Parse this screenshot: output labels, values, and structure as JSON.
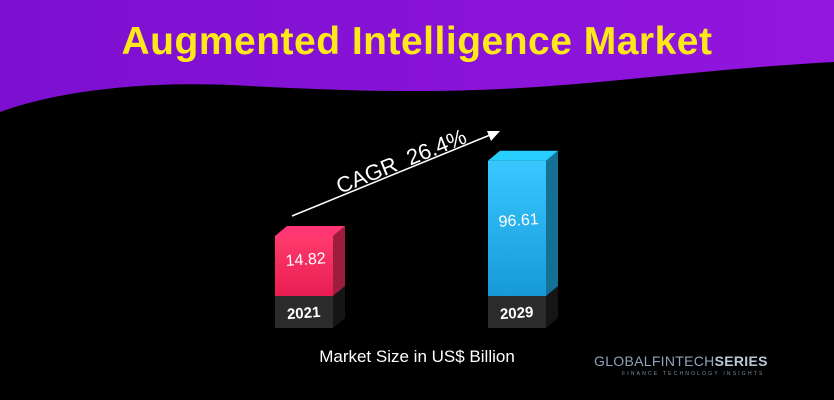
{
  "header": {
    "title": "Augmented Intelligence Market",
    "band_color": "#8a12d6",
    "title_color": "#ffe81a"
  },
  "chart_data": {
    "type": "bar",
    "categories": [
      "2021",
      "2029"
    ],
    "values": [
      14.82,
      96.61
    ],
    "value_labels": [
      "14.82",
      "96.61"
    ],
    "colors": [
      "#ff2f64",
      "#22b4f0"
    ],
    "annotation": "CAGR  26.4%",
    "caption": "Market Size in US$ Billion",
    "title": "Augmented Intelligence Market",
    "ylim": [
      0,
      100
    ],
    "grid": false,
    "legend": "none"
  },
  "branding": {
    "logo_text_regular": "GLOBALFINTECH",
    "logo_text_bold": "SERIES",
    "logo_tagline": "FINANCE TECHNOLOGY INSIGHTS"
  }
}
